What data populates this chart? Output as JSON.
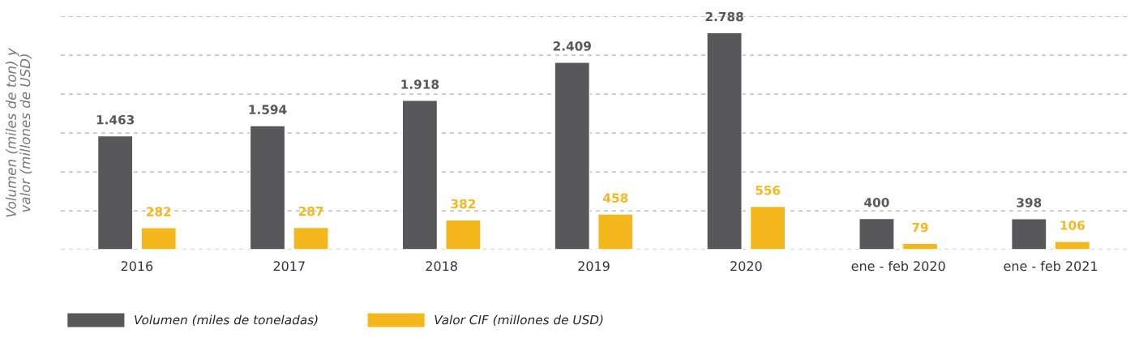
{
  "chart_data": {
    "type": "bar",
    "ylabel": "Volumen (miles de ton) y valor (millones de USD)",
    "categories": [
      "2016",
      "2017",
      "2018",
      "2019",
      "2020",
      "ene - feb 2020",
      "ene - feb 2021"
    ],
    "series": [
      {
        "name": "Volumen (miles de toneladas)",
        "color": "#58585a",
        "values": [
          1463,
          1594,
          1918,
          2409,
          2788,
          400,
          398
        ],
        "value_labels": [
          "1.463",
          "1.594",
          "1.918",
          "2.409",
          "2.788",
          "400",
          "398"
        ]
      },
      {
        "name": "Valor CIF (millones de USD)",
        "color": "#f5b81c",
        "values": [
          282,
          287,
          382,
          458,
          556,
          79,
          106
        ],
        "value_labels": [
          "282",
          "287",
          "382",
          "458",
          "556",
          "79",
          "106"
        ]
      }
    ],
    "ylim": [
      0,
      3000
    ],
    "yticks": [
      {
        "value": 0,
        "label": null
      },
      {
        "value": 500,
        "label": null
      },
      {
        "value": 1000,
        "label": null
      },
      {
        "value": 1500,
        "label": null
      },
      {
        "value": 2000,
        "label": null
      },
      {
        "value": 2500,
        "label": null
      },
      {
        "value": 3000,
        "label": null
      }
    ],
    "grid": "y",
    "legend": "bottom"
  }
}
